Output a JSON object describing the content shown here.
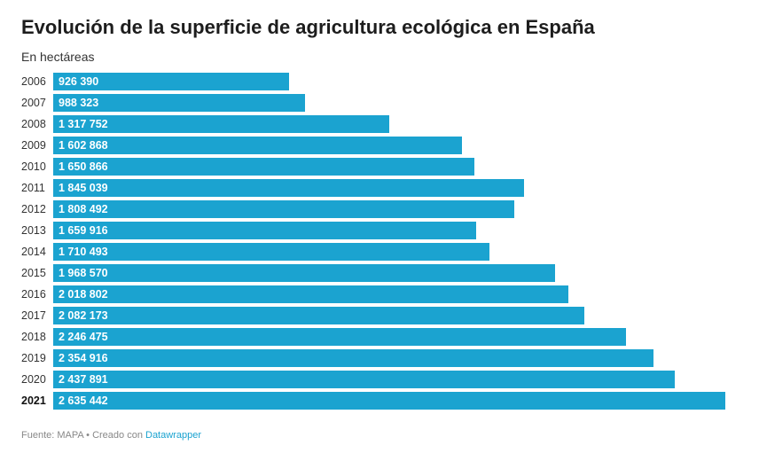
{
  "header": {
    "title": "Evolución de la superficie de agricultura ecológica en España",
    "subtitle": "En hectáreas"
  },
  "footer": {
    "source": "Fuente: MAPA • Creado con ",
    "tool": "Datawrapper"
  },
  "colors": {
    "bar": "#1ba3d0",
    "label": "#ffffff"
  },
  "chart_data": {
    "type": "bar",
    "orientation": "horizontal",
    "title": "Evolución de la superficie de agricultura ecológica en España",
    "subtitle": "En hectáreas",
    "categories": [
      "2006",
      "2007",
      "2008",
      "2009",
      "2010",
      "2011",
      "2012",
      "2013",
      "2014",
      "2015",
      "2016",
      "2017",
      "2018",
      "2019",
      "2020",
      "2021"
    ],
    "values": [
      926390,
      988323,
      1317752,
      1602868,
      1650866,
      1845039,
      1808492,
      1659916,
      1710493,
      1968570,
      2018802,
      2082173,
      2246475,
      2354916,
      2437891,
      2635442
    ],
    "value_labels": [
      "926 390",
      "988 323",
      "1 317 752",
      "1 602 868",
      "1 650 866",
      "1 845 039",
      "1 808 492",
      "1 659 916",
      "1 710 493",
      "1 968 570",
      "2 018 802",
      "2 082 173",
      "2 246 475",
      "2 354 916",
      "2 437 891",
      "2 635 442"
    ],
    "highlight_category": "2021",
    "xlim": [
      0,
      2635442
    ]
  }
}
